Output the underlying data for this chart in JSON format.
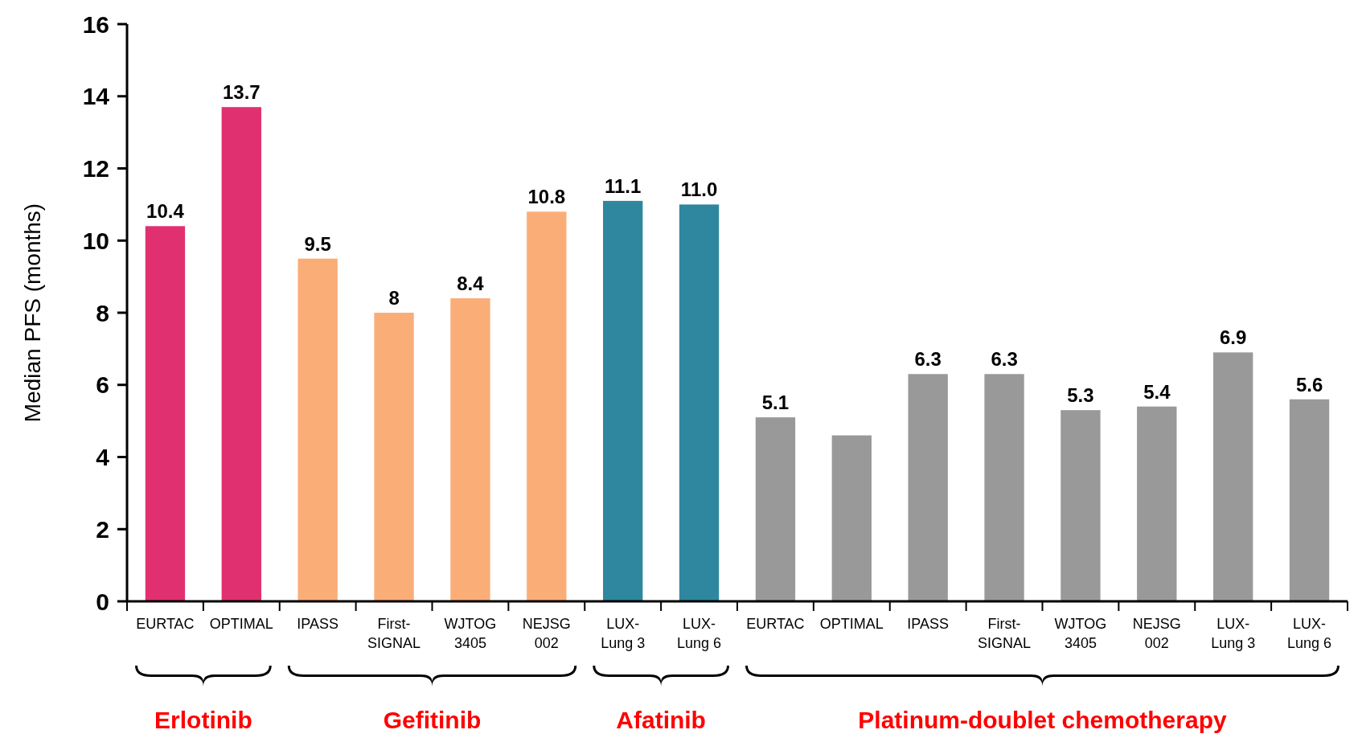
{
  "chart_data": {
    "type": "bar",
    "ylabel": "Median PFS (months)",
    "categories": [
      "EURTAC",
      "OPTIMAL",
      "IPASS",
      "First-SIGNAL",
      "WJTOG 3405",
      "NEJSG 002",
      "LUX-Lung 3",
      "LUX-Lung 6",
      "EURTAC",
      "OPTIMAL",
      "IPASS",
      "First-SIGNAL",
      "WJTOG 3405",
      "NEJSG 002",
      "LUX-Lung 3",
      "LUX-Lung 6"
    ],
    "values": [
      10.4,
      13.7,
      9.5,
      8,
      8.4,
      10.8,
      11.1,
      11.0,
      5.1,
      4.6,
      6.3,
      6.3,
      5.3,
      5.4,
      6.9,
      5.6
    ],
    "value_labels": [
      "10.4",
      "13.7",
      "9.5",
      "8",
      "8.4",
      "10.8",
      "11.1",
      "11.0",
      "5.1",
      null,
      "6.3",
      "6.3",
      "5.3",
      "5.4",
      "6.9",
      "5.6"
    ],
    "colors": [
      "#e0306f",
      "#e0306f",
      "#fbad78",
      "#fbad78",
      "#fbad78",
      "#fbad78",
      "#2e879e",
      "#2e879e",
      "#999999",
      "#999999",
      "#999999",
      "#999999",
      "#999999",
      "#999999",
      "#999999",
      "#999999"
    ],
    "annotations": [
      "Erlotinib",
      "Gefitinib",
      "Afatinib",
      "Platinum-doublet chemotherapy"
    ],
    "ylim": [
      0,
      16
    ],
    "yticks": [
      0,
      2,
      4,
      6,
      8,
      10,
      12,
      14,
      16
    ],
    "grid": false
  }
}
